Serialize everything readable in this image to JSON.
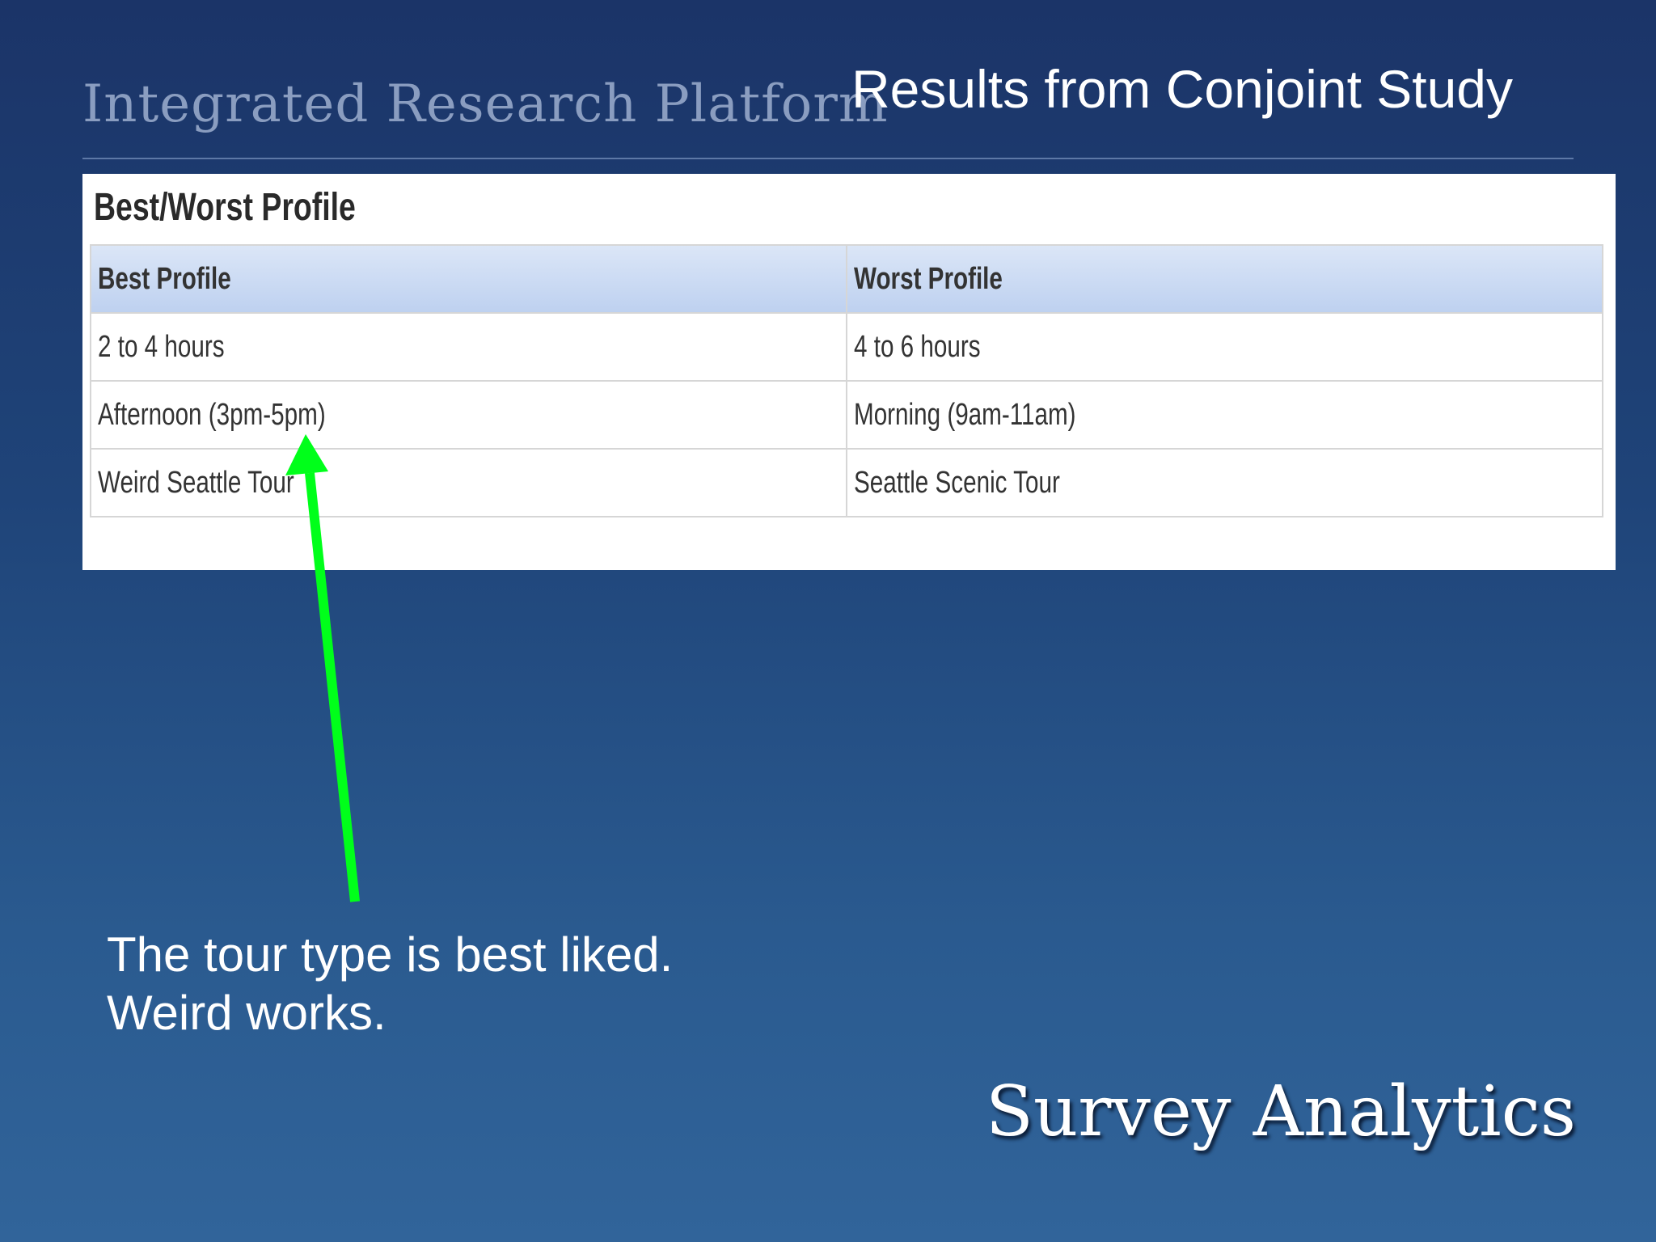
{
  "header": {
    "brand": "Integrated Research Platform",
    "title": "Results from Conjoint Study"
  },
  "panel": {
    "title": "Best/Worst Profile"
  },
  "table": {
    "columns": [
      "Best Profile",
      "Worst Profile"
    ],
    "rows": [
      [
        "2 to 4 hours",
        "4 to 6 hours"
      ],
      [
        "Afternoon (3pm-5pm)",
        "Morning (9am-11am)"
      ],
      [
        "Weird Seattle Tour",
        "Seattle Scenic Tour"
      ]
    ]
  },
  "annotation": {
    "lines": [
      "The tour type is best liked.",
      "Weird works."
    ]
  },
  "footer": {
    "brand": "Survey Analytics"
  }
}
